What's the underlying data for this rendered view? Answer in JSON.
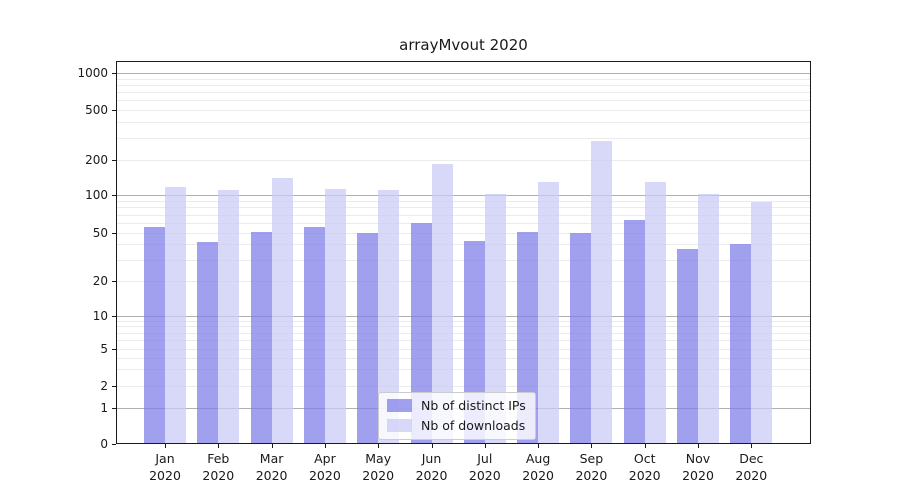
{
  "chart_data": {
    "type": "bar",
    "title": "arrayMvout 2020",
    "categories": [
      "Jan",
      "Feb",
      "Mar",
      "Apr",
      "May",
      "Jun",
      "Jul",
      "Aug",
      "Sep",
      "Oct",
      "Nov",
      "Dec"
    ],
    "category_year": "2020",
    "series": [
      {
        "name": "Nb of distinct IPs",
        "color": "rgba(124,124,231,0.72)",
        "values": [
          56,
          42,
          51,
          56,
          50,
          60,
          43,
          51,
          50,
          63,
          37,
          40
        ]
      },
      {
        "name": "Nb of downloads",
        "color": "rgba(201,201,245,0.72)",
        "values": [
          117,
          112,
          140,
          114,
          110,
          186,
          102,
          131,
          283,
          129,
          103,
          88
        ]
      }
    ],
    "xlabel": "",
    "ylabel": "",
    "yscale": "symlog",
    "ylim": [
      0,
      1240
    ],
    "y_ticks": [
      0,
      1,
      2,
      5,
      10,
      20,
      50,
      100,
      200,
      500,
      1000
    ],
    "grid": true,
    "grid_major_color": "#b0b0b0",
    "grid_minor_color": "#ebebeb",
    "legend_position": "lower center",
    "legend": [
      "Nb of distinct IPs",
      "Nb of downloads"
    ]
  }
}
